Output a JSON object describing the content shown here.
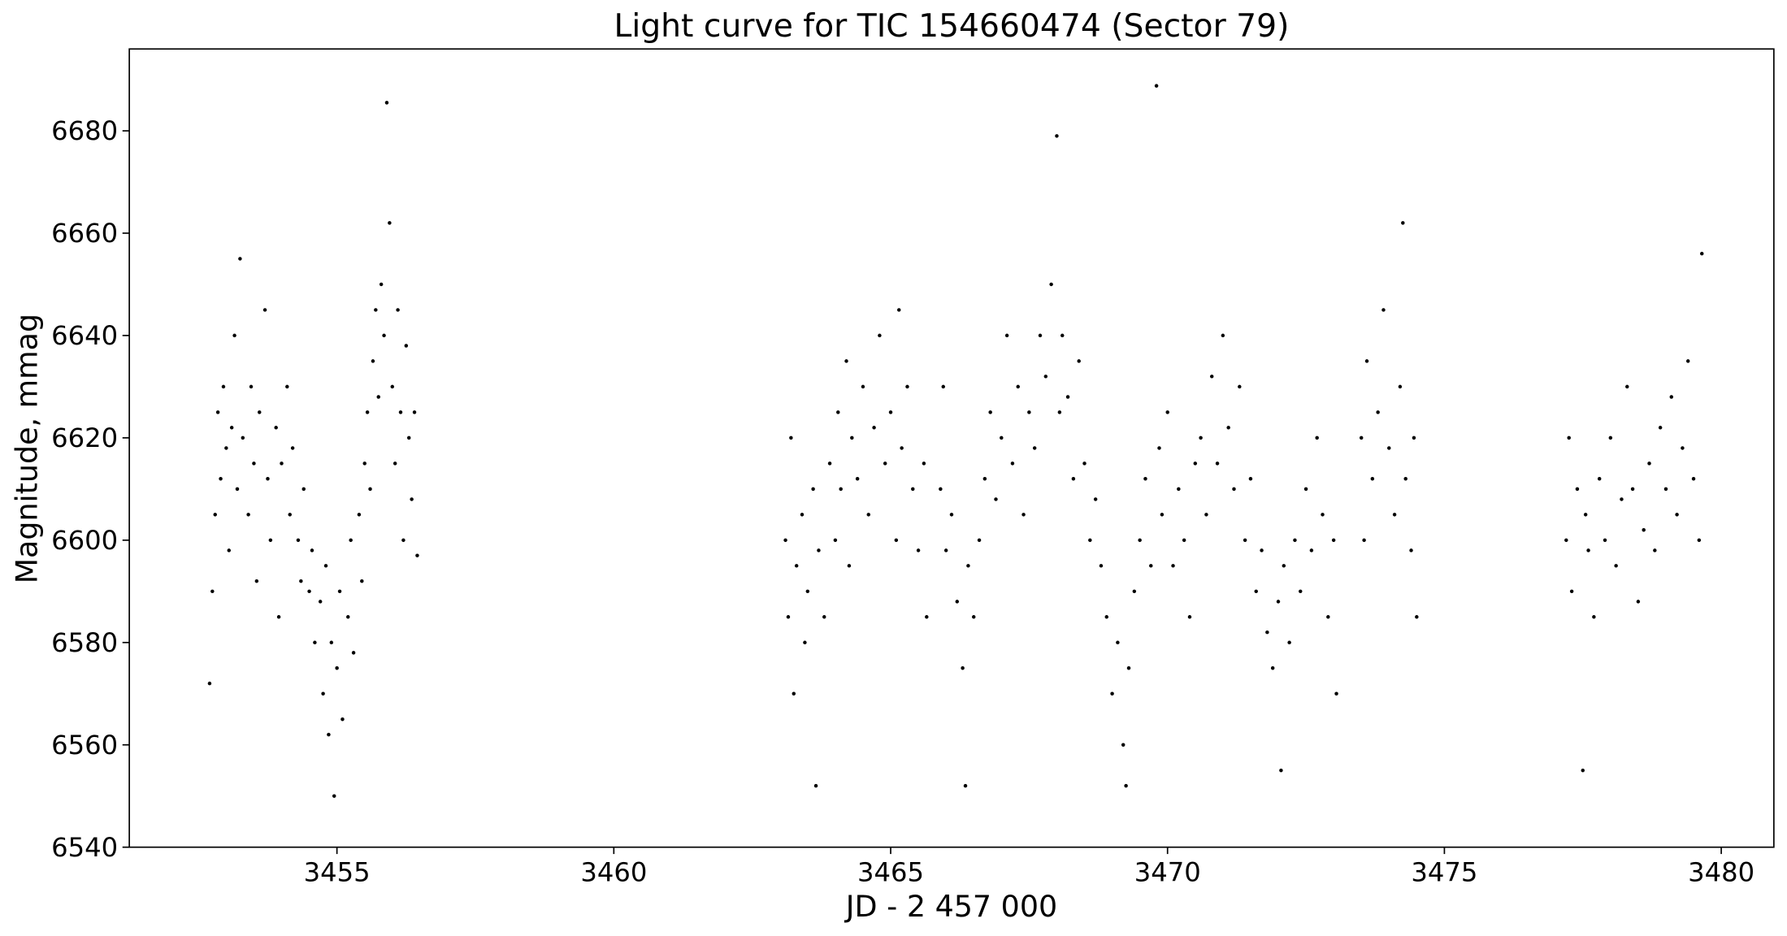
{
  "chart_data": {
    "type": "scatter",
    "title": "Light curve for TIC 154660474 (Sector 79)",
    "x_label": "JD - 2 457 000",
    "y_label": "Magnitude, mmag",
    "color": "#000000",
    "xlim": [
      3451.25,
      3480.95
    ],
    "ylim": [
      6540,
      6696
    ],
    "xticks": [
      3455,
      3460,
      3465,
      3470,
      3475,
      3480
    ],
    "yticks": [
      6540,
      6560,
      6580,
      6600,
      6620,
      6640,
      6660,
      6680
    ],
    "series": [
      {
        "name": "TIC 154660474",
        "x": [
          3452.7,
          3452.75,
          3452.8,
          3452.85,
          3452.9,
          3452.95,
          3453.0,
          3453.05,
          3453.1,
          3453.15,
          3453.2,
          3453.25,
          3453.3,
          3453.4,
          3453.45,
          3453.5,
          3453.55,
          3453.6,
          3453.7,
          3453.75,
          3453.8,
          3453.9,
          3453.95,
          3454.0,
          3454.1,
          3454.15,
          3454.2,
          3454.3,
          3454.35,
          3454.4,
          3454.5,
          3454.55,
          3454.6,
          3454.7,
          3454.75,
          3454.8,
          3454.85,
          3454.9,
          3454.95,
          3455.0,
          3455.05,
          3455.1,
          3455.2,
          3455.25,
          3455.3,
          3455.4,
          3455.45,
          3455.5,
          3455.55,
          3455.6,
          3455.65,
          3455.7,
          3455.75,
          3455.8,
          3455.85,
          3455.9,
          3455.95,
          3456.0,
          3456.05,
          3456.1,
          3456.15,
          3456.2,
          3456.25,
          3456.3,
          3456.35,
          3456.4,
          3456.45,
          3463.1,
          3463.15,
          3463.2,
          3463.25,
          3463.3,
          3463.4,
          3463.45,
          3463.5,
          3463.6,
          3463.65,
          3463.7,
          3463.8,
          3463.9,
          3464.0,
          3464.05,
          3464.1,
          3464.2,
          3464.25,
          3464.3,
          3464.4,
          3464.5,
          3464.6,
          3464.7,
          3464.8,
          3464.9,
          3465.0,
          3465.1,
          3465.15,
          3465.2,
          3465.3,
          3465.4,
          3465.5,
          3465.6,
          3465.65,
          3465.9,
          3465.95,
          3466.0,
          3466.1,
          3466.2,
          3466.3,
          3466.35,
          3466.4,
          3466.5,
          3466.6,
          3466.7,
          3466.8,
          3466.9,
          3467.0,
          3467.1,
          3467.2,
          3467.3,
          3467.4,
          3467.5,
          3467.6,
          3467.7,
          3467.8,
          3467.9,
          3468.0,
          3468.05,
          3468.1,
          3468.2,
          3468.3,
          3468.4,
          3468.5,
          3468.6,
          3468.7,
          3468.8,
          3468.9,
          3469.0,
          3469.1,
          3469.2,
          3469.25,
          3469.3,
          3469.4,
          3469.5,
          3469.6,
          3469.7,
          3469.8,
          3469.85,
          3469.9,
          3470.0,
          3470.1,
          3470.2,
          3470.3,
          3470.4,
          3470.5,
          3470.6,
          3470.7,
          3470.8,
          3470.9,
          3471.0,
          3471.1,
          3471.2,
          3471.3,
          3471.4,
          3471.5,
          3471.6,
          3471.7,
          3471.8,
          3471.9,
          3472.0,
          3472.05,
          3472.1,
          3472.2,
          3472.3,
          3472.4,
          3472.5,
          3472.6,
          3472.7,
          3472.8,
          3472.9,
          3473.0,
          3473.05,
          3473.5,
          3473.55,
          3473.6,
          3473.7,
          3473.8,
          3473.9,
          3474.0,
          3474.1,
          3474.2,
          3474.25,
          3474.3,
          3474.4,
          3474.45,
          3474.5,
          3477.2,
          3477.25,
          3477.3,
          3477.4,
          3477.5,
          3477.55,
          3477.6,
          3477.7,
          3477.8,
          3477.9,
          3478.0,
          3478.1,
          3478.2,
          3478.3,
          3478.4,
          3478.5,
          3478.6,
          3478.7,
          3478.8,
          3478.9,
          3479.0,
          3479.1,
          3479.2,
          3479.3,
          3479.4,
          3479.5,
          3479.6,
          3479.65
        ],
        "values": [
          6572,
          6590,
          6605,
          6625,
          6612,
          6630,
          6618,
          6598,
          6622,
          6640,
          6610,
          6655,
          6620,
          6605,
          6630,
          6615,
          6592,
          6625,
          6645,
          6612,
          6600,
          6622,
          6585,
          6615,
          6630,
          6605,
          6618,
          6600,
          6592,
          6610,
          6590,
          6598,
          6580,
          6588,
          6570,
          6595,
          6562,
          6580,
          6550,
          6575,
          6590,
          6565,
          6585,
          6600,
          6578,
          6605,
          6592,
          6615,
          6625,
          6610,
          6635,
          6645,
          6628,
          6650,
          6640,
          6685.5,
          6662,
          6630,
          6615,
          6645,
          6625,
          6600,
          6638,
          6620,
          6608,
          6625,
          6597,
          6600,
          6585,
          6620,
          6570,
          6595,
          6605,
          6580,
          6590,
          6610,
          6552,
          6598,
          6585,
          6615,
          6600,
          6625,
          6610,
          6635,
          6595,
          6620,
          6612,
          6630,
          6605,
          6622,
          6640,
          6615,
          6625,
          6600,
          6645,
          6618,
          6630,
          6610,
          6598,
          6615,
          6585,
          6610,
          6630,
          6598,
          6605,
          6588,
          6575,
          6552,
          6595,
          6585,
          6600,
          6612,
          6625,
          6608,
          6620,
          6640,
          6615,
          6630,
          6605,
          6625,
          6618,
          6640,
          6632,
          6650,
          6679,
          6625,
          6640,
          6628,
          6612,
          6635,
          6615,
          6600,
          6608,
          6595,
          6585,
          6570,
          6580,
          6560,
          6552,
          6575,
          6590,
          6600,
          6612,
          6595,
          6688.8,
          6618,
          6605,
          6625,
          6595,
          6610,
          6600,
          6585,
          6615,
          6620,
          6605,
          6632,
          6615,
          6640,
          6622,
          6610,
          6630,
          6600,
          6612,
          6590,
          6598,
          6582,
          6575,
          6588,
          6555,
          6595,
          6580,
          6600,
          6590,
          6610,
          6598,
          6620,
          6605,
          6585,
          6600,
          6570,
          6620,
          6600,
          6635,
          6612,
          6625,
          6645,
          6618,
          6605,
          6630,
          6662,
          6612,
          6598,
          6620,
          6585,
          6600,
          6620,
          6590,
          6610,
          6555,
          6605,
          6598,
          6585,
          6612,
          6600,
          6620,
          6595,
          6608,
          6630,
          6610,
          6588,
          6602,
          6615,
          6598,
          6622,
          6610,
          6628,
          6605,
          6618,
          6635,
          6612,
          6600,
          6656
        ]
      }
    ]
  }
}
